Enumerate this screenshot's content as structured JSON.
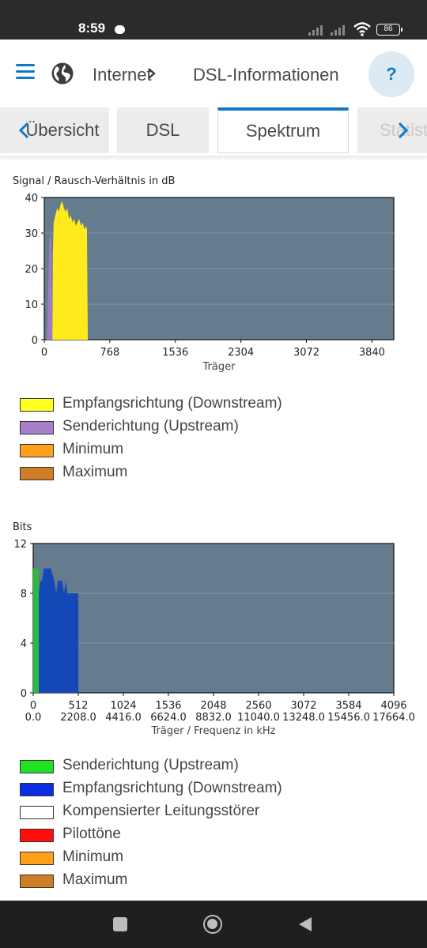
{
  "status": {
    "time": "8:59",
    "battery": "86"
  },
  "header": {
    "breadcrumb": [
      "Internet",
      "DSL-Informationen"
    ],
    "help_label": "?"
  },
  "tabs": [
    {
      "label": "Übersicht"
    },
    {
      "label": "DSL"
    },
    {
      "label": "Spektrum",
      "active": true
    },
    {
      "label": "Statistik"
    }
  ],
  "colors": {
    "accent": "#0f7ac8",
    "plot_bg": "#657b8e",
    "downstream_snr": "#ffea1d",
    "upstream_snr": "#a07cc6",
    "upstream_bits": "#2ab942",
    "downstream_bits": "#1448b7",
    "minimum": "#ff9c10",
    "maximum": "#cc7a23",
    "pilot": "#ff0000"
  },
  "snr_chart": {
    "title": "Signal / Rausch-Verhältnis in dB",
    "legend": [
      {
        "label": "Empfangsrichtung (Downstream)",
        "color": "#ffff20"
      },
      {
        "label": "Senderichtung (Upstream)",
        "color": "#a77fc8"
      },
      {
        "label": "Minimum",
        "color": "#ff9f1a"
      },
      {
        "label": "Maximum",
        "color": "#cf7d27"
      }
    ]
  },
  "bits_chart": {
    "title": "Bits",
    "legend": [
      {
        "label": "Senderichtung (Upstream)",
        "color": "#22e022"
      },
      {
        "label": "Empfangsrichtung (Downstream)",
        "color": "#0a2ee0"
      },
      {
        "label": "Kompensierter Leitungsstörer",
        "color": "#ffffff"
      },
      {
        "label": "Pilottöne",
        "color": "#ff0d0d"
      },
      {
        "label": "Minimum",
        "color": "#ff9f1a"
      },
      {
        "label": "Maximum",
        "color": "#cf7d27"
      }
    ]
  },
  "chart_data": [
    {
      "type": "area",
      "title": "Signal / Rausch-Verhältnis in dB",
      "xlabel": "Träger",
      "ylabel": "",
      "xlim": [
        0,
        4096
      ],
      "ylim": [
        0,
        40
      ],
      "xticks": [
        "0",
        "768",
        "1536",
        "2304",
        "3072",
        "3840"
      ],
      "yticks": [
        "0",
        "10",
        "20",
        "30",
        "40"
      ],
      "series": [
        {
          "name": "Senderichtung (Upstream)",
          "x": [
            32,
            40,
            60,
            80,
            95
          ],
          "y": [
            0,
            10,
            28,
            30,
            0
          ]
        },
        {
          "name": "Empfangsrichtung (Downstream)",
          "x": [
            95,
            100,
            110,
            130,
            150,
            170,
            190,
            210,
            230,
            250,
            270,
            290,
            310,
            330,
            350,
            370,
            390,
            410,
            430,
            450,
            470,
            490,
            500,
            510
          ],
          "y": [
            0,
            24,
            33,
            35,
            37,
            36,
            38,
            39,
            37,
            36,
            37,
            34,
            35,
            33,
            34,
            32,
            33,
            34,
            32,
            33,
            31,
            32,
            31,
            0
          ]
        }
      ]
    },
    {
      "type": "area",
      "title": "Bits",
      "xlabel": "Träger / Frequenz in kHz",
      "ylabel": "",
      "xlim": [
        0,
        4096
      ],
      "ylim": [
        0,
        12
      ],
      "xticks": [
        "0",
        "512",
        "1024",
        "1536",
        "2048",
        "2560",
        "3072",
        "3584",
        "4096"
      ],
      "xticks2": [
        "0.0",
        "2208.0",
        "4416.0",
        "6624.0",
        "8832.0",
        "11040.0",
        "13248.0",
        "15456.0",
        "17664.0"
      ],
      "yticks": [
        "0",
        "4",
        "8",
        "12"
      ],
      "series": [
        {
          "name": "Senderichtung (Upstream)",
          "x": [
            0,
            64
          ],
          "y": [
            10,
            10
          ]
        },
        {
          "name": "Empfangsrichtung (Downstream)",
          "x": [
            64,
            80,
            100,
            120,
            200,
            240,
            260,
            280,
            330,
            350,
            370,
            390,
            420,
            460,
            512
          ],
          "y": [
            8,
            9,
            9,
            10,
            10,
            9,
            8,
            9,
            9,
            8,
            9,
            8,
            8,
            8,
            8
          ]
        }
      ]
    }
  ]
}
